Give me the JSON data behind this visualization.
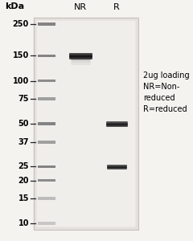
{
  "background_color": "#f5f3f0",
  "gel_bg": "#e8e5e0",
  "gel_inner_bg": "#f0eeeb",
  "kda_label": "kDa",
  "title_NR": "NR",
  "title_R": "R",
  "marker_positions": [
    250,
    150,
    100,
    75,
    50,
    37,
    25,
    20,
    15,
    10
  ],
  "marker_labels": [
    "250",
    "150",
    "100",
    "75",
    "50",
    "37",
    "25",
    "20",
    "15",
    "10"
  ],
  "log_min": 10,
  "log_max": 250,
  "ladder_intensities": [
    0.65,
    0.65,
    0.6,
    0.5,
    0.65,
    0.5,
    0.65,
    0.6,
    0.35,
    0.3
  ],
  "NR_band_kda": 150,
  "R_band_hc_kda": 50,
  "R_band_lc_kda": 25,
  "annotation_text": "2ug loading\nNR=Non-\nreduced\nR=reduced",
  "tick_fontsize": 7,
  "title_fontsize": 8,
  "kda_fontsize": 8,
  "annot_fontsize": 7
}
